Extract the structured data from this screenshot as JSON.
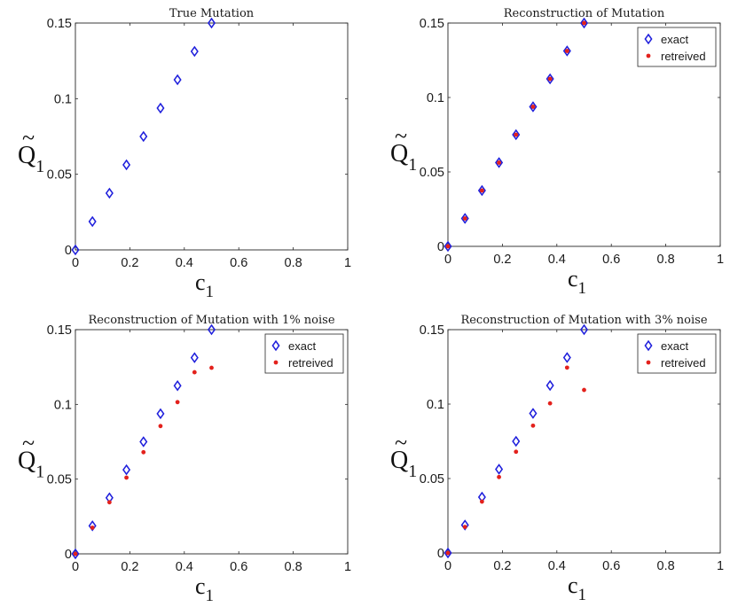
{
  "chart_data": [
    {
      "type": "scatter",
      "title": "True Mutation",
      "xlabel": "c",
      "xlabel_sub": "1",
      "ylabel": "Q",
      "ylabel_accent": "~",
      "ylabel_sub": "1",
      "xlim": [
        0,
        1
      ],
      "ylim": [
        0,
        0.15
      ],
      "xticks": [
        "0",
        "0.2",
        "0.4",
        "0.6",
        "0.8",
        "1"
      ],
      "yticks": [
        "0",
        "0.05",
        "0.1",
        "0.15"
      ],
      "legend": null,
      "series": [
        {
          "name": "exact",
          "marker": "diamond",
          "color": "#1f1fdc",
          "x": [
            0,
            0.0625,
            0.125,
            0.1875,
            0.25,
            0.3125,
            0.375,
            0.4375,
            0.5
          ],
          "y": [
            0,
            0.01875,
            0.0375,
            0.05625,
            0.075,
            0.09375,
            0.1125,
            0.13125,
            0.15
          ]
        }
      ]
    },
    {
      "type": "scatter",
      "title": "Reconstruction of Mutation",
      "xlabel": "c",
      "xlabel_sub": "1",
      "ylabel": "Q",
      "ylabel_accent": "~",
      "ylabel_sub": "1",
      "xlim": [
        0,
        1
      ],
      "ylim": [
        0,
        0.15
      ],
      "xticks": [
        "0",
        "0.2",
        "0.4",
        "0.6",
        "0.8",
        "1"
      ],
      "yticks": [
        "0",
        "0.05",
        "0.1",
        "0.15"
      ],
      "legend": {
        "position": "top-right",
        "entries": [
          "exact",
          "retreived"
        ]
      },
      "series": [
        {
          "name": "exact",
          "marker": "diamond",
          "color": "#1f1fdc",
          "x": [
            0,
            0.0625,
            0.125,
            0.1875,
            0.25,
            0.3125,
            0.375,
            0.4375,
            0.5
          ],
          "y": [
            0,
            0.01875,
            0.0375,
            0.05625,
            0.075,
            0.09375,
            0.1125,
            0.13125,
            0.15
          ]
        },
        {
          "name": "retreived",
          "marker": "dot",
          "color": "#e3211c",
          "x": [
            0,
            0.0625,
            0.125,
            0.1875,
            0.25,
            0.3125,
            0.375,
            0.4375,
            0.5
          ],
          "y": [
            0,
            0.01875,
            0.0375,
            0.05625,
            0.075,
            0.09375,
            0.1125,
            0.13125,
            0.15
          ]
        }
      ]
    },
    {
      "type": "scatter",
      "title": "Reconstruction of Mutation with 1% noise",
      "xlabel": "c",
      "xlabel_sub": "1",
      "ylabel": "Q",
      "ylabel_accent": "~",
      "ylabel_sub": "1",
      "xlim": [
        0,
        1
      ],
      "ylim": [
        0,
        0.15
      ],
      "xticks": [
        "0",
        "0.2",
        "0.4",
        "0.6",
        "0.8",
        "1"
      ],
      "yticks": [
        "0",
        "0.05",
        "0.1",
        "0.15"
      ],
      "legend": {
        "position": "top-right",
        "entries": [
          "exact",
          "retreived"
        ]
      },
      "series": [
        {
          "name": "exact",
          "marker": "diamond",
          "color": "#1f1fdc",
          "x": [
            0,
            0.0625,
            0.125,
            0.1875,
            0.25,
            0.3125,
            0.375,
            0.4375,
            0.5
          ],
          "y": [
            0,
            0.01875,
            0.0375,
            0.05625,
            0.075,
            0.09375,
            0.1125,
            0.13125,
            0.15
          ]
        },
        {
          "name": "retreived",
          "marker": "dot",
          "color": "#e3211c",
          "x": [
            0,
            0.0625,
            0.125,
            0.1875,
            0.25,
            0.3125,
            0.375,
            0.4375,
            0.5
          ],
          "y": [
            0,
            0.0175,
            0.0345,
            0.051,
            0.068,
            0.0855,
            0.1015,
            0.1215,
            0.1245
          ]
        }
      ]
    },
    {
      "type": "scatter",
      "title": "Reconstruction of Mutation with 3% noise",
      "xlabel": "c",
      "xlabel_sub": "1",
      "ylabel": "Q",
      "ylabel_accent": "~",
      "ylabel_sub": "1",
      "xlim": [
        0,
        1
      ],
      "ylim": [
        0,
        0.15
      ],
      "xticks": [
        "0",
        "0.2",
        "0.4",
        "0.6",
        "0.8",
        "1"
      ],
      "yticks": [
        "0",
        "0.05",
        "0.1",
        "0.15"
      ],
      "legend": {
        "position": "top-right",
        "entries": [
          "exact",
          "retreived"
        ]
      },
      "series": [
        {
          "name": "exact",
          "marker": "diamond",
          "color": "#1f1fdc",
          "x": [
            0,
            0.0625,
            0.125,
            0.1875,
            0.25,
            0.3125,
            0.375,
            0.4375,
            0.5
          ],
          "y": [
            0,
            0.01875,
            0.0375,
            0.05625,
            0.075,
            0.09375,
            0.1125,
            0.13125,
            0.15
          ]
        },
        {
          "name": "retreived",
          "marker": "dot",
          "color": "#e3211c",
          "x": [
            0,
            0.0625,
            0.125,
            0.1875,
            0.25,
            0.3125,
            0.375,
            0.4375,
            0.5
          ],
          "y": [
            0,
            0.0175,
            0.0345,
            0.051,
            0.068,
            0.0855,
            0.1005,
            0.1245,
            0.1095
          ]
        }
      ]
    }
  ]
}
